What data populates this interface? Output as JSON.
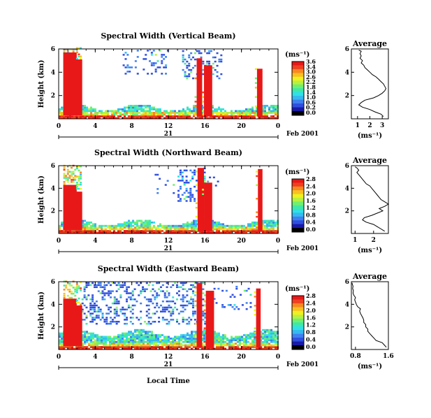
{
  "chart_data": [
    {
      "type": "heatmap",
      "title": "Spectral Width (Vertical Beam)",
      "ylabel": "Height (km)",
      "ylim": [
        0,
        6
      ],
      "yticks": [
        "6",
        "4",
        "2"
      ],
      "xlim": [
        0,
        24
      ],
      "xticks": [
        "0",
        "4",
        "8",
        "12",
        "16",
        "20",
        "0"
      ],
      "date_tick": "21",
      "date_label": "Feb 2001",
      "colorbar": {
        "unit": "(ms⁻¹)",
        "max": 3.6,
        "labels": [
          "3.6",
          "3.4",
          "3.0",
          "2.6",
          "2.2",
          "1.8",
          "1.4",
          "1.0",
          "0.6",
          "0.2",
          "0.0"
        ]
      },
      "average": {
        "title": "Average",
        "xlabel": "(ms⁻¹)",
        "xlim": [
          0.5,
          3.5
        ],
        "xticks": [
          "1",
          "2",
          "3"
        ],
        "yticks": [
          "6",
          "4",
          "2"
        ],
        "profile": [
          [
            0.2,
            3.1
          ],
          [
            0.4,
            2.9
          ],
          [
            0.6,
            2.4
          ],
          [
            0.8,
            2.0
          ],
          [
            1.0,
            1.4
          ],
          [
            1.2,
            1.1
          ],
          [
            1.4,
            1.3
          ],
          [
            1.6,
            1.6
          ],
          [
            1.8,
            2.3
          ],
          [
            2.0,
            2.7
          ],
          [
            2.2,
            3.0
          ],
          [
            2.4,
            3.2
          ],
          [
            2.6,
            3.3
          ],
          [
            2.8,
            3.2
          ],
          [
            3.0,
            3.1
          ],
          [
            3.2,
            2.9
          ],
          [
            3.4,
            2.7
          ],
          [
            3.6,
            2.5
          ],
          [
            3.8,
            2.2
          ],
          [
            4.0,
            2.0
          ],
          [
            4.2,
            1.8
          ],
          [
            4.4,
            1.6
          ],
          [
            4.6,
            1.5
          ],
          [
            4.8,
            1.3
          ],
          [
            5.0,
            1.4
          ],
          [
            5.2,
            1.2
          ],
          [
            5.4,
            1.3
          ],
          [
            5.6,
            1.2
          ],
          [
            5.8,
            1.3
          ],
          [
            5.9,
            1.1
          ]
        ]
      }
    },
    {
      "type": "heatmap",
      "title": "Spectral Width (Northward Beam)",
      "ylabel": "Height (km)",
      "ylim": [
        0,
        6
      ],
      "yticks": [
        "6",
        "4",
        "2"
      ],
      "xlim": [
        0,
        24
      ],
      "xticks": [
        "0",
        "4",
        "8",
        "12",
        "16",
        "20",
        "0"
      ],
      "date_tick": "21",
      "date_label": "Feb 2001",
      "colorbar": {
        "unit": "(ms⁻¹)",
        "max": 2.8,
        "labels": [
          "2.8",
          "2.4",
          "2.0",
          "1.6",
          "1.2",
          "0.8",
          "0.4",
          "0.0"
        ]
      },
      "average": {
        "title": "Average",
        "xlabel": "(ms⁻¹)",
        "xlim": [
          0.8,
          2.8
        ],
        "xticks": [
          "1",
          "2"
        ],
        "yticks": [
          "6",
          "4",
          "2"
        ],
        "profile": [
          [
            0.2,
            2.6
          ],
          [
            0.4,
            2.4
          ],
          [
            0.6,
            2.2
          ],
          [
            0.8,
            2.0
          ],
          [
            1.0,
            1.6
          ],
          [
            1.2,
            1.4
          ],
          [
            1.4,
            1.5
          ],
          [
            1.6,
            1.9
          ],
          [
            1.8,
            2.2
          ],
          [
            2.0,
            2.5
          ],
          [
            2.2,
            2.3
          ],
          [
            2.4,
            2.6
          ],
          [
            2.6,
            2.8
          ],
          [
            2.8,
            2.6
          ],
          [
            3.0,
            2.4
          ],
          [
            3.2,
            2.3
          ],
          [
            3.4,
            2.2
          ],
          [
            3.6,
            2.1
          ],
          [
            3.8,
            2.0
          ],
          [
            4.0,
            1.9
          ],
          [
            4.2,
            1.8
          ],
          [
            4.4,
            1.6
          ],
          [
            4.6,
            1.5
          ],
          [
            4.8,
            1.4
          ],
          [
            5.0,
            1.3
          ],
          [
            5.2,
            1.2
          ],
          [
            5.4,
            1.1
          ],
          [
            5.6,
            1.2
          ],
          [
            5.8,
            1.1
          ],
          [
            5.9,
            1.0
          ]
        ]
      }
    },
    {
      "type": "heatmap",
      "title": "Spectral Width (Eastward Beam)",
      "ylabel": "Height (km)",
      "ylim": [
        0,
        6
      ],
      "yticks": [
        "6",
        "4",
        "2"
      ],
      "xlim": [
        0,
        24
      ],
      "xticks": [
        "0",
        "4",
        "8",
        "12",
        "16",
        "20",
        "0"
      ],
      "date_tick": "21",
      "date_label": "Feb 2001",
      "xlabel": "Local Time",
      "colorbar": {
        "unit": "(ms⁻¹)",
        "max": 2.8,
        "labels": [
          "2.8",
          "2.4",
          "2.0",
          "1.6",
          "1.2",
          "0.8",
          "0.4",
          "0.0"
        ]
      },
      "average": {
        "title": "Average",
        "xlabel": "(ms⁻¹)",
        "xlim": [
          0.7,
          1.6
        ],
        "xticks": [
          "0.8",
          "1.6"
        ],
        "yticks": [
          "6",
          "4",
          "2"
        ],
        "profile": [
          [
            0.2,
            1.55
          ],
          [
            0.4,
            1.5
          ],
          [
            0.6,
            1.45
          ],
          [
            0.8,
            1.3
          ],
          [
            1.0,
            1.25
          ],
          [
            1.2,
            1.2
          ],
          [
            1.4,
            1.15
          ],
          [
            1.6,
            1.1
          ],
          [
            1.8,
            1.1
          ],
          [
            2.0,
            1.05
          ],
          [
            2.2,
            1.05
          ],
          [
            2.4,
            1.0
          ],
          [
            2.6,
            1.0
          ],
          [
            2.8,
            0.98
          ],
          [
            3.0,
            0.95
          ],
          [
            3.2,
            0.92
          ],
          [
            3.4,
            0.9
          ],
          [
            3.6,
            0.92
          ],
          [
            3.8,
            0.85
          ],
          [
            4.0,
            0.82
          ],
          [
            4.2,
            0.8
          ],
          [
            4.4,
            0.78
          ],
          [
            4.6,
            0.8
          ],
          [
            4.8,
            0.76
          ],
          [
            5.0,
            0.74
          ],
          [
            5.2,
            0.75
          ],
          [
            5.4,
            0.73
          ],
          [
            5.6,
            0.74
          ],
          [
            5.8,
            0.72
          ],
          [
            5.9,
            0.72
          ]
        ]
      }
    }
  ]
}
